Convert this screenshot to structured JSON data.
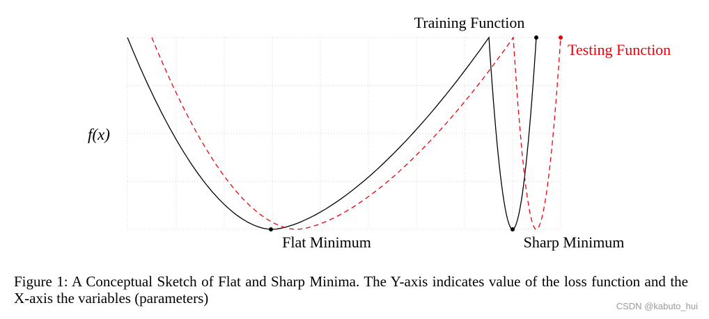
{
  "chart_data": {
    "type": "line",
    "title": "",
    "xlabel": "",
    "ylabel": "f(x)",
    "grid": true,
    "series": [
      {
        "name": "Training Function",
        "color": "#000000",
        "style": "solid",
        "annotations": [
          "Flat Minimum",
          "Sharp Minimum"
        ]
      },
      {
        "name": "Testing Function",
        "color": "#e8000b",
        "style": "dashed"
      }
    ],
    "annotations": {
      "flat_minimum": "Flat Minimum",
      "sharp_minimum": "Sharp Minimum"
    }
  },
  "figure": {
    "caption_text": "Figure 1: A Conceptual Sketch of Flat and Sharp Minima. The Y-axis indicates value of the loss function and the X-axis the variables (parameters)"
  },
  "watermark": {
    "text": "CSDN @kabuto_hui"
  }
}
